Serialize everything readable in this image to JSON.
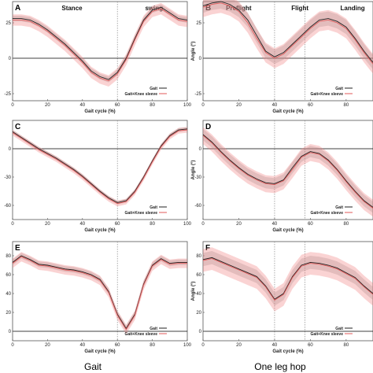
{
  "columns": [
    "Gait",
    "One leg hop"
  ],
  "chart_data": [
    {
      "id": "A",
      "type": "line",
      "xlabel": "Gait cycle (%)",
      "ylabel": "",
      "xlim": [
        0,
        100
      ],
      "ylim": [
        -30,
        40
      ],
      "xticks": [
        0,
        20,
        40,
        60,
        80,
        100
      ],
      "yticks": [
        -25,
        0,
        25
      ],
      "phase_labels": [
        "Stance",
        "swing"
      ],
      "vlines": [
        60
      ],
      "x": [
        0,
        5,
        10,
        15,
        20,
        25,
        30,
        35,
        40,
        45,
        50,
        55,
        60,
        65,
        70,
        75,
        80,
        85,
        90,
        95,
        100
      ],
      "series": [
        {
          "name": "Gait",
          "color": "#222222",
          "values": [
            28,
            28,
            27,
            24,
            20,
            15,
            10,
            4,
            -2,
            -9,
            -13,
            -15,
            -10,
            0,
            14,
            27,
            34,
            36,
            32,
            28,
            27
          ],
          "band": 2
        },
        {
          "name": "Gait+Knee sleeve",
          "color": "#e05a5a",
          "values": [
            27,
            27,
            26,
            23,
            19,
            14,
            9,
            3,
            -3,
            -10,
            -14,
            -16,
            -11,
            -1,
            13,
            26,
            33,
            35,
            31,
            27,
            26
          ],
          "band": 4
        }
      ],
      "legend": "bottom-right"
    },
    {
      "id": "B",
      "type": "line",
      "xlabel": "Gait cycle (%)",
      "ylabel": "Angle (°)",
      "xlim": [
        0,
        95
      ],
      "ylim": [
        -30,
        40
      ],
      "xticks": [
        0,
        20,
        40,
        60,
        80
      ],
      "yticks": [
        -25,
        0,
        25
      ],
      "phase_labels": [
        "Preflight",
        "Flight",
        "Landing"
      ],
      "vlines": [
        40,
        57
      ],
      "x": [
        0,
        5,
        10,
        15,
        20,
        25,
        30,
        35,
        40,
        45,
        50,
        55,
        60,
        65,
        70,
        75,
        80,
        85,
        90,
        95
      ],
      "series": [
        {
          "name": "Gait",
          "color": "#222222",
          "values": [
            37,
            39,
            40,
            38,
            34,
            27,
            16,
            5,
            1,
            4,
            10,
            16,
            22,
            27,
            28,
            26,
            22,
            14,
            5,
            -3
          ],
          "band": 5
        },
        {
          "name": "Gait+Knee sleeve",
          "color": "#e05a5a",
          "values": [
            36,
            38,
            39,
            37,
            33,
            25,
            14,
            4,
            0,
            3,
            9,
            15,
            21,
            26,
            27,
            25,
            21,
            13,
            4,
            -4
          ],
          "band": 7
        }
      ],
      "legend": "bottom-right"
    },
    {
      "id": "C",
      "type": "line",
      "xlabel": "Gait cycle (%)",
      "ylabel": "",
      "xlim": [
        0,
        100
      ],
      "ylim": [
        -75,
        30
      ],
      "xticks": [
        0,
        20,
        40,
        60,
        80,
        100
      ],
      "yticks": [
        -60,
        -30,
        0
      ],
      "vlines": [
        60
      ],
      "x": [
        0,
        5,
        10,
        15,
        20,
        25,
        30,
        35,
        40,
        45,
        50,
        55,
        60,
        65,
        70,
        75,
        80,
        85,
        90,
        95,
        100
      ],
      "series": [
        {
          "name": "Gait",
          "color": "#222222",
          "values": [
            18,
            12,
            6,
            0,
            -5,
            -10,
            -16,
            -22,
            -29,
            -37,
            -45,
            -52,
            -57,
            -55,
            -45,
            -30,
            -13,
            3,
            14,
            20,
            21
          ],
          "band": 2
        },
        {
          "name": "Gait+Knee sleeve",
          "color": "#e05a5a",
          "values": [
            17,
            11,
            5,
            -1,
            -6,
            -11,
            -17,
            -23,
            -30,
            -38,
            -46,
            -53,
            -58,
            -56,
            -46,
            -31,
            -14,
            2,
            13,
            19,
            20
          ],
          "band": 3
        }
      ],
      "legend": "bottom-right"
    },
    {
      "id": "D",
      "type": "line",
      "xlabel": "Gait cycle (%)",
      "ylabel": "Angle (°)",
      "xlim": [
        0,
        95
      ],
      "ylim": [
        -75,
        30
      ],
      "xticks": [
        0,
        20,
        40,
        60,
        80
      ],
      "yticks": [
        -60,
        -30,
        0
      ],
      "vlines": [
        40,
        57
      ],
      "x": [
        0,
        5,
        10,
        15,
        20,
        25,
        30,
        35,
        40,
        45,
        50,
        55,
        60,
        65,
        70,
        75,
        80,
        85,
        90,
        95
      ],
      "series": [
        {
          "name": "Gait",
          "color": "#222222",
          "values": [
            15,
            7,
            -3,
            -12,
            -20,
            -27,
            -32,
            -36,
            -37,
            -33,
            -20,
            -8,
            -3,
            -5,
            -12,
            -22,
            -34,
            -45,
            -55,
            -62
          ],
          "band": 6
        },
        {
          "name": "Gait+Knee sleeve",
          "color": "#e05a5a",
          "values": [
            14,
            6,
            -4,
            -13,
            -21,
            -28,
            -33,
            -37,
            -38,
            -34,
            -22,
            -9,
            -4,
            -6,
            -13,
            -23,
            -35,
            -46,
            -56,
            -63
          ],
          "band": 9
        }
      ],
      "legend": "bottom-right"
    },
    {
      "id": "E",
      "type": "line",
      "xlabel": "Gait cycle (%)",
      "ylabel": "",
      "xlim": [
        0,
        100
      ],
      "ylim": [
        -10,
        95
      ],
      "xticks": [
        0,
        20,
        40,
        60,
        80,
        100
      ],
      "yticks": [
        0,
        20,
        40,
        60,
        80
      ],
      "vlines": [
        60
      ],
      "x": [
        0,
        5,
        10,
        15,
        20,
        25,
        30,
        35,
        40,
        45,
        50,
        55,
        60,
        65,
        70,
        75,
        80,
        85,
        90,
        95,
        100
      ],
      "series": [
        {
          "name": "Gait",
          "color": "#222222",
          "values": [
            73,
            80,
            76,
            71,
            70,
            68,
            66,
            65,
            63,
            60,
            55,
            42,
            18,
            3,
            18,
            50,
            70,
            77,
            72,
            73,
            73
          ],
          "band": 3
        },
        {
          "name": "Gait+Knee sleeve",
          "color": "#e05a5a",
          "values": [
            72,
            79,
            75,
            70,
            69,
            67,
            65,
            64,
            62,
            59,
            54,
            41,
            17,
            2,
            17,
            49,
            69,
            76,
            71,
            72,
            72
          ],
          "band": 5
        }
      ],
      "legend": "bottom-right"
    },
    {
      "id": "F",
      "type": "line",
      "xlabel": "Gait cycle (%)",
      "ylabel": "Angle (°)",
      "xlim": [
        0,
        95
      ],
      "ylim": [
        -10,
        95
      ],
      "xticks": [
        0,
        20,
        40,
        60,
        80
      ],
      "yticks": [
        0,
        20,
        40,
        60,
        80
      ],
      "vlines": [
        40,
        57
      ],
      "x": [
        0,
        5,
        10,
        15,
        20,
        25,
        30,
        35,
        40,
        45,
        50,
        55,
        60,
        65,
        70,
        75,
        80,
        85,
        90,
        95
      ],
      "series": [
        {
          "name": "Gait",
          "color": "#222222",
          "values": [
            76,
            78,
            74,
            70,
            66,
            62,
            58,
            48,
            34,
            40,
            58,
            70,
            73,
            72,
            70,
            67,
            62,
            57,
            48,
            40
          ],
          "band": 7
        },
        {
          "name": "Gait+Knee sleeve",
          "color": "#e05a5a",
          "values": [
            75,
            77,
            73,
            69,
            65,
            61,
            57,
            47,
            33,
            39,
            57,
            69,
            72,
            71,
            69,
            66,
            61,
            56,
            47,
            39
          ],
          "band": 12
        }
      ],
      "legend": "bottom-right"
    }
  ]
}
